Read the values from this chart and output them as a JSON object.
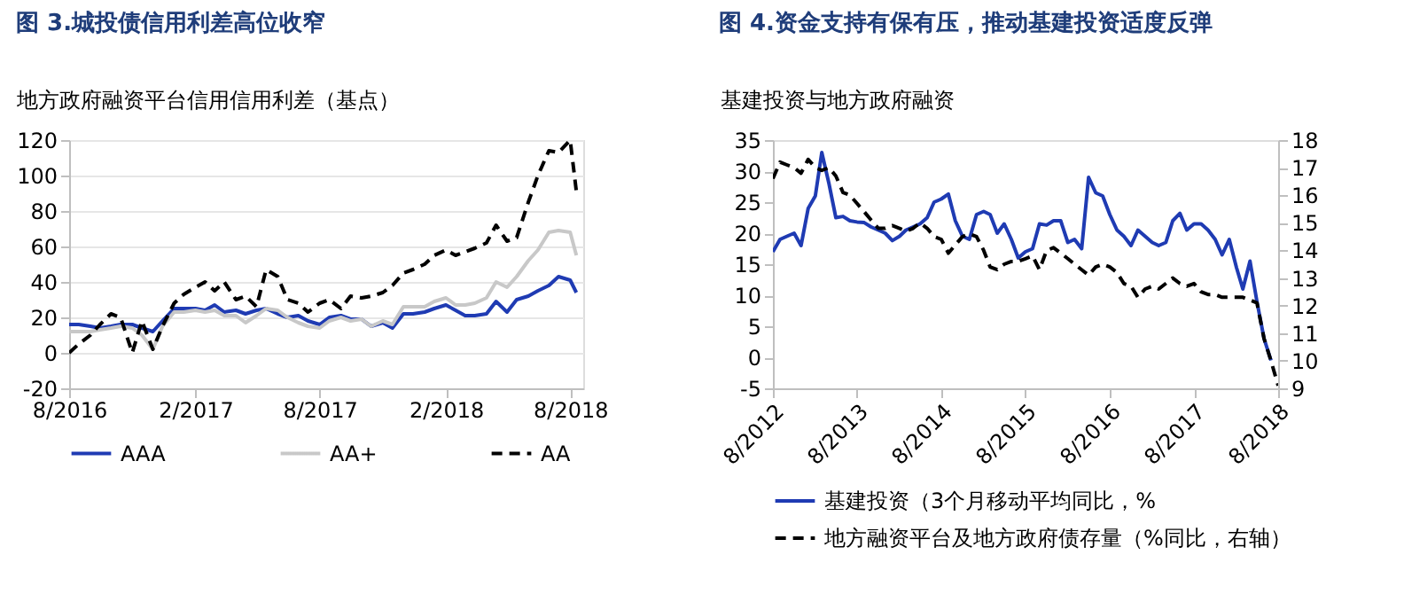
{
  "chart_data": [
    {
      "type": "line",
      "title": "图 3.城投债信用利差高位收窄",
      "ylabel": "地方政府融资平台信用信用利差（基点）",
      "x": [
        "2016-08-01",
        "2016-08-15",
        "2016-09-01",
        "2016-09-15",
        "2016-10-01",
        "2016-10-15",
        "2016-11-01",
        "2016-11-15",
        "2016-12-01",
        "2016-12-15",
        "2017-01-01",
        "2017-01-15",
        "2017-02-01",
        "2017-02-15",
        "2017-03-01",
        "2017-03-15",
        "2017-04-01",
        "2017-04-15",
        "2017-05-01",
        "2017-05-15",
        "2017-06-01",
        "2017-06-15",
        "2017-07-01",
        "2017-07-15",
        "2017-08-01",
        "2017-08-15",
        "2017-09-01",
        "2017-09-15",
        "2017-10-01",
        "2017-10-15",
        "2017-11-01",
        "2017-11-15",
        "2017-12-01",
        "2017-12-15",
        "2018-01-01",
        "2018-01-15",
        "2018-02-01",
        "2018-02-15",
        "2018-03-01",
        "2018-03-15",
        "2018-04-01",
        "2018-04-15",
        "2018-05-01",
        "2018-05-15",
        "2018-06-01",
        "2018-06-15",
        "2018-07-01",
        "2018-07-15",
        "2018-08-01",
        "2018-08-10"
      ],
      "series": [
        {
          "name": "AAA",
          "color": "#1f3bb3",
          "line_style": "solid",
          "values": [
            16,
            16,
            15,
            14,
            15,
            16,
            16,
            14,
            12,
            18,
            25,
            25,
            25,
            24,
            27,
            23,
            24,
            22,
            24,
            25,
            22,
            20,
            21,
            18,
            16,
            20,
            21,
            19,
            19,
            15,
            17,
            14,
            22,
            22,
            23,
            25,
            27,
            24,
            21,
            21,
            22,
            29,
            23,
            30,
            32,
            35,
            38,
            43,
            41,
            34
          ]
        },
        {
          "name": "AA+",
          "color": "#c8c8c8",
          "line_style": "solid",
          "values": [
            12,
            12,
            12,
            13,
            14,
            15,
            14,
            10,
            2,
            15,
            23,
            23,
            24,
            23,
            24,
            21,
            21,
            17,
            21,
            25,
            24,
            20,
            17,
            15,
            14,
            18,
            20,
            18,
            19,
            15,
            18,
            16,
            26,
            26,
            26,
            29,
            31,
            27,
            27,
            28,
            31,
            40,
            37,
            43,
            52,
            58,
            68,
            69,
            68,
            55
          ]
        },
        {
          "name": "AA",
          "color": "#000000",
          "line_style": "dashed",
          "values": [
            0,
            5,
            10,
            16,
            22,
            20,
            0,
            18,
            2,
            15,
            28,
            33,
            37,
            40,
            35,
            40,
            30,
            32,
            26,
            47,
            43,
            30,
            28,
            23,
            28,
            30,
            25,
            32,
            31,
            32,
            34,
            38,
            45,
            47,
            50,
            55,
            58,
            55,
            57,
            59,
            62,
            72,
            63,
            65,
            85,
            100,
            114,
            113,
            120,
            91
          ]
        }
      ],
      "xlim": [
        "2016-08-01",
        "2018-08-20"
      ],
      "xticks": [
        {
          "value": "2016-08-01",
          "label": "8/2016"
        },
        {
          "value": "2017-02-01",
          "label": "2/2017"
        },
        {
          "value": "2017-08-01",
          "label": "8/2017"
        },
        {
          "value": "2018-02-01",
          "label": "2/2018"
        },
        {
          "value": "2018-08-01",
          "label": "8/2018"
        }
      ],
      "ylim": [
        -20,
        120
      ],
      "yticks": [
        -20,
        0,
        20,
        40,
        60,
        80,
        100,
        120
      ],
      "grid": "y",
      "legend": "bottom"
    },
    {
      "type": "line",
      "title": "图 4.资金支持有保有压，推动基建投资适度反弹",
      "ylabel": "基建投资与地方政府融资",
      "x": [
        "2012-08",
        "2012-09",
        "2012-10",
        "2012-11",
        "2012-12",
        "2013-01",
        "2013-02",
        "2013-03",
        "2013-04",
        "2013-05",
        "2013-06",
        "2013-07",
        "2013-08",
        "2013-09",
        "2013-10",
        "2013-11",
        "2013-12",
        "2014-01",
        "2014-02",
        "2014-03",
        "2014-04",
        "2014-05",
        "2014-06",
        "2014-07",
        "2014-08",
        "2014-09",
        "2014-10",
        "2014-11",
        "2014-12",
        "2015-01",
        "2015-02",
        "2015-03",
        "2015-04",
        "2015-05",
        "2015-06",
        "2015-07",
        "2015-08",
        "2015-09",
        "2015-10",
        "2015-11",
        "2015-12",
        "2016-01",
        "2016-02",
        "2016-03",
        "2016-04",
        "2016-05",
        "2016-06",
        "2016-07",
        "2016-08",
        "2016-09",
        "2016-10",
        "2016-11",
        "2016-12",
        "2017-01",
        "2017-02",
        "2017-03",
        "2017-04",
        "2017-05",
        "2017-06",
        "2017-07",
        "2017-08",
        "2017-09",
        "2017-10",
        "2017-11",
        "2017-12",
        "2018-01",
        "2018-02",
        "2018-03",
        "2018-04",
        "2018-05",
        "2018-06",
        "2018-07",
        "2018-08"
      ],
      "series": [
        {
          "name": "基建投资（3个月移动平均同比，%",
          "color": "#1f3bb3",
          "line_style": "solid",
          "values": [
            17,
            19,
            19.5,
            20,
            18,
            24,
            26,
            33,
            28,
            22.5,
            22.7,
            22,
            21.8,
            21.7,
            21,
            20.5,
            20,
            18.8,
            19.5,
            20.5,
            21,
            21.5,
            22.5,
            25,
            25.5,
            26.3,
            22,
            19.5,
            19,
            23,
            23.5,
            23,
            20,
            21.5,
            19,
            16,
            17,
            17.5,
            21.5,
            21.3,
            22,
            22,
            18.5,
            19,
            17.5,
            29,
            26.5,
            26,
            23,
            20.5,
            19.5,
            18,
            20.5,
            19.5,
            18.5,
            18,
            18.5,
            22,
            23.2,
            20.5,
            21.5,
            21.5,
            20.5,
            19,
            16.5,
            19,
            14.5,
            11,
            15.5,
            9,
            3,
            -0.5,
            null
          ]
        },
        {
          "name": "地方融资平台及地方政府债存量（%同比，右轴）",
          "color": "#000000",
          "line_style": "dashed",
          "axis": "y2",
          "values": [
            16.6,
            17.2,
            17.1,
            17.0,
            16.8,
            17.3,
            17.0,
            16.9,
            17.0,
            16.7,
            16.1,
            16.0,
            15.7,
            15.4,
            15.1,
            14.8,
            14.8,
            14.9,
            14.8,
            14.7,
            14.8,
            15.0,
            14.8,
            14.5,
            14.4,
            13.9,
            14.2,
            14.5,
            14.6,
            14.5,
            14.0,
            13.4,
            13.3,
            13.5,
            13.6,
            13.6,
            13.7,
            13.8,
            13.3,
            14.0,
            14.1,
            13.9,
            13.7,
            13.5,
            13.3,
            13.1,
            13.4,
            13.5,
            13.4,
            13.2,
            12.8,
            12.7,
            12.3,
            12.6,
            12.7,
            12.6,
            12.8,
            13.0,
            12.8,
            12.7,
            12.8,
            12.5,
            12.4,
            12.4,
            12.3,
            12.3,
            12.3,
            12.3,
            12.2,
            12.1,
            10.8,
            10.0,
            9.1
          ]
        }
      ],
      "xlim": [
        "2012-08",
        "2018-08"
      ],
      "xticks": [
        {
          "value": "2012-08",
          "label": "8/2012"
        },
        {
          "value": "2013-08",
          "label": "8/2013"
        },
        {
          "value": "2014-08",
          "label": "8/2014"
        },
        {
          "value": "2015-08",
          "label": "8/2015"
        },
        {
          "value": "2016-08",
          "label": "8/2016"
        },
        {
          "value": "2017-08",
          "label": "8/2017"
        },
        {
          "value": "2018-08",
          "label": "8/2018"
        }
      ],
      "ylim": [
        -5,
        35
      ],
      "yticks": [
        -5,
        0,
        5,
        10,
        15,
        20,
        25,
        30,
        35
      ],
      "y2lim": [
        9,
        18
      ],
      "y2ticks": [
        9,
        10,
        11,
        12,
        13,
        14,
        15,
        16,
        17,
        18
      ],
      "legend": "bottom"
    }
  ]
}
